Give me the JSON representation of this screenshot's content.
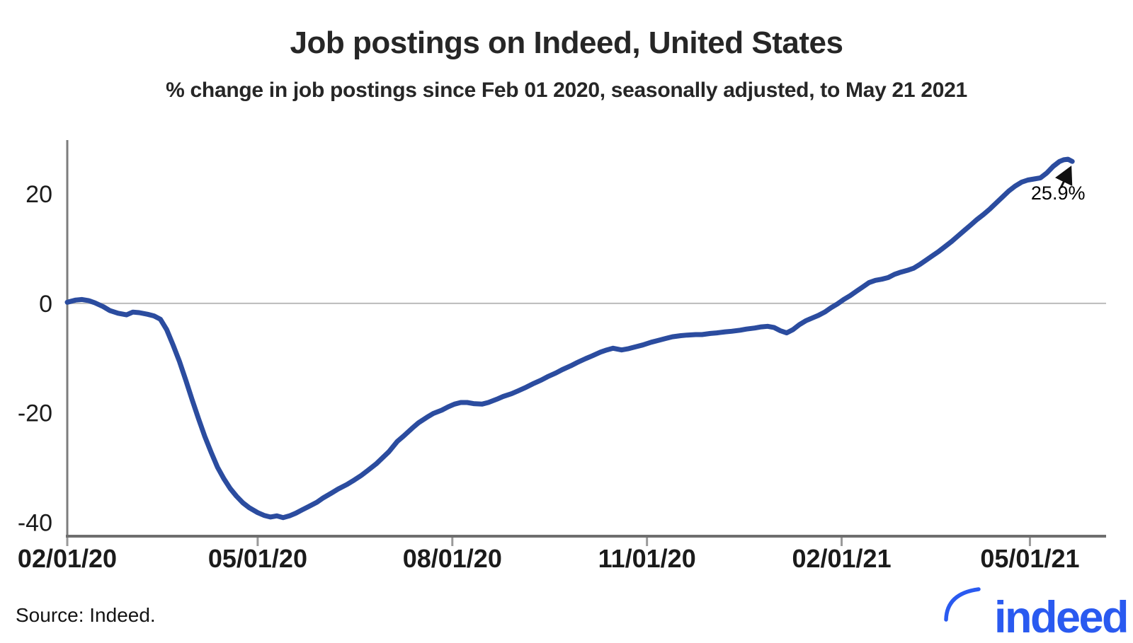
{
  "header": {
    "title": "Job postings on Indeed, United States",
    "subtitle": "% change in job postings since Feb 01 2020, seasonally adjusted, to May 21 2021"
  },
  "source": {
    "label": "Source: Indeed."
  },
  "logo": {
    "text": "indeed",
    "color": "#2a5af0"
  },
  "chart_data": {
    "type": "line",
    "title": "Job postings on Indeed, United States",
    "subtitle": "% change in job postings since Feb 01 2020, seasonally adjusted, to May 21 2021",
    "x_unit": "days since Feb 01 2020",
    "xlim_days": [
      0,
      491
    ],
    "ylim": [
      -42.5,
      29.8
    ],
    "grid": "zero-line-only",
    "zero_line": 0,
    "line_color": "#2b4c9f",
    "axis_color": "#6e6e6e",
    "gridline_color": "#bbbbbb",
    "x_ticks": [
      {
        "day": 0,
        "label": "02/01/20"
      },
      {
        "day": 90,
        "label": "05/01/20"
      },
      {
        "day": 182,
        "label": "08/01/20"
      },
      {
        "day": 274,
        "label": "11/01/20"
      },
      {
        "day": 366,
        "label": "02/01/21"
      },
      {
        "day": 455,
        "label": "05/01/21"
      }
    ],
    "y_ticks": [
      20,
      0,
      -20,
      -40
    ],
    "annotation": {
      "text": "25.9%",
      "day": 475,
      "value": 25.9
    },
    "series": [
      {
        "name": "US job postings, % change since Feb 01 2020",
        "points": [
          [
            0,
            0.2
          ],
          [
            4,
            0.6
          ],
          [
            7,
            0.7
          ],
          [
            10,
            0.5
          ],
          [
            13,
            0.1
          ],
          [
            17,
            -0.6
          ],
          [
            20,
            -1.3
          ],
          [
            24,
            -1.8
          ],
          [
            28,
            -2.1
          ],
          [
            31,
            -1.6
          ],
          [
            34,
            -1.7
          ],
          [
            38,
            -2.0
          ],
          [
            41,
            -2.3
          ],
          [
            44,
            -2.9
          ],
          [
            47,
            -4.8
          ],
          [
            50,
            -7.6
          ],
          [
            53,
            -10.6
          ],
          [
            56,
            -14.0
          ],
          [
            59,
            -17.6
          ],
          [
            62,
            -21.0
          ],
          [
            65,
            -24.3
          ],
          [
            68,
            -27.2
          ],
          [
            71,
            -29.9
          ],
          [
            74,
            -32.0
          ],
          [
            77,
            -33.8
          ],
          [
            80,
            -35.2
          ],
          [
            83,
            -36.4
          ],
          [
            86,
            -37.3
          ],
          [
            90,
            -38.2
          ],
          [
            93,
            -38.7
          ],
          [
            96,
            -39.0
          ],
          [
            99,
            -38.8
          ],
          [
            102,
            -39.1
          ],
          [
            105,
            -38.8
          ],
          [
            108,
            -38.3
          ],
          [
            111,
            -37.7
          ],
          [
            114,
            -37.1
          ],
          [
            118,
            -36.3
          ],
          [
            121,
            -35.5
          ],
          [
            125,
            -34.6
          ],
          [
            128,
            -33.9
          ],
          [
            132,
            -33.1
          ],
          [
            135,
            -32.4
          ],
          [
            139,
            -31.4
          ],
          [
            142,
            -30.5
          ],
          [
            146,
            -29.3
          ],
          [
            149,
            -28.2
          ],
          [
            152,
            -27.1
          ],
          [
            156,
            -25.2
          ],
          [
            159,
            -24.2
          ],
          [
            163,
            -22.8
          ],
          [
            166,
            -21.8
          ],
          [
            170,
            -20.8
          ],
          [
            173,
            -20.1
          ],
          [
            177,
            -19.5
          ],
          [
            180,
            -18.9
          ],
          [
            183,
            -18.4
          ],
          [
            186,
            -18.1
          ],
          [
            189,
            -18.1
          ],
          [
            192,
            -18.3
          ],
          [
            196,
            -18.4
          ],
          [
            199,
            -18.1
          ],
          [
            203,
            -17.5
          ],
          [
            206,
            -17.0
          ],
          [
            210,
            -16.5
          ],
          [
            213,
            -16.0
          ],
          [
            217,
            -15.3
          ],
          [
            220,
            -14.7
          ],
          [
            224,
            -14.0
          ],
          [
            227,
            -13.4
          ],
          [
            231,
            -12.7
          ],
          [
            234,
            -12.1
          ],
          [
            238,
            -11.4
          ],
          [
            241,
            -10.8
          ],
          [
            245,
            -10.1
          ],
          [
            248,
            -9.6
          ],
          [
            252,
            -8.9
          ],
          [
            255,
            -8.5
          ],
          [
            258,
            -8.2
          ],
          [
            262,
            -8.5
          ],
          [
            265,
            -8.3
          ],
          [
            269,
            -7.9
          ],
          [
            272,
            -7.6
          ],
          [
            276,
            -7.1
          ],
          [
            279,
            -6.8
          ],
          [
            283,
            -6.4
          ],
          [
            286,
            -6.1
          ],
          [
            290,
            -5.9
          ],
          [
            293,
            -5.8
          ],
          [
            297,
            -5.7
          ],
          [
            300,
            -5.7
          ],
          [
            304,
            -5.5
          ],
          [
            307,
            -5.4
          ],
          [
            311,
            -5.2
          ],
          [
            314,
            -5.1
          ],
          [
            318,
            -4.9
          ],
          [
            321,
            -4.7
          ],
          [
            325,
            -4.5
          ],
          [
            328,
            -4.3
          ],
          [
            331,
            -4.2
          ],
          [
            334,
            -4.4
          ],
          [
            337,
            -5.0
          ],
          [
            340,
            -5.4
          ],
          [
            343,
            -4.8
          ],
          [
            346,
            -3.9
          ],
          [
            349,
            -3.2
          ],
          [
            352,
            -2.7
          ],
          [
            355,
            -2.2
          ],
          [
            358,
            -1.6
          ],
          [
            361,
            -0.8
          ],
          [
            364,
            -0.1
          ],
          [
            367,
            0.7
          ],
          [
            370,
            1.4
          ],
          [
            373,
            2.2
          ],
          [
            376,
            3.0
          ],
          [
            379,
            3.8
          ],
          [
            382,
            4.2
          ],
          [
            385,
            4.4
          ],
          [
            388,
            4.7
          ],
          [
            391,
            5.3
          ],
          [
            394,
            5.7
          ],
          [
            397,
            6.0
          ],
          [
            400,
            6.4
          ],
          [
            403,
            7.1
          ],
          [
            406,
            7.9
          ],
          [
            409,
            8.7
          ],
          [
            412,
            9.5
          ],
          [
            415,
            10.4
          ],
          [
            418,
            11.3
          ],
          [
            421,
            12.3
          ],
          [
            424,
            13.3
          ],
          [
            427,
            14.3
          ],
          [
            430,
            15.3
          ],
          [
            433,
            16.2
          ],
          [
            436,
            17.2
          ],
          [
            439,
            18.3
          ],
          [
            442,
            19.4
          ],
          [
            445,
            20.5
          ],
          [
            448,
            21.4
          ],
          [
            451,
            22.1
          ],
          [
            454,
            22.5
          ],
          [
            457,
            22.7
          ],
          [
            460,
            22.9
          ],
          [
            463,
            23.8
          ],
          [
            466,
            25.0
          ],
          [
            469,
            25.9
          ],
          [
            471,
            26.2
          ],
          [
            473,
            26.3
          ],
          [
            475,
            25.9
          ]
        ]
      }
    ]
  }
}
